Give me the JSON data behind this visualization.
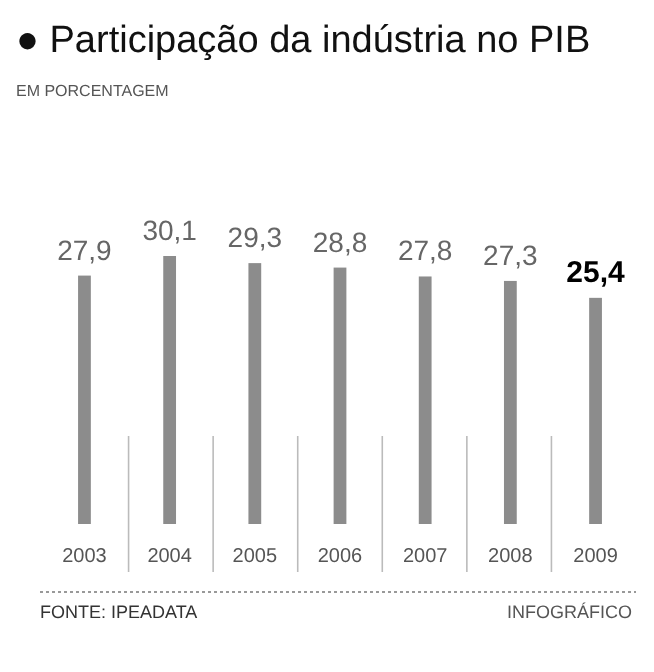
{
  "chart_data": {
    "type": "bar",
    "title": "● Participação da indústria no PIB",
    "subtitle": "EM PORCENTAGEM",
    "categories": [
      "2003",
      "2004",
      "2005",
      "2006",
      "2007",
      "2008",
      "2009"
    ],
    "values": [
      27.9,
      30.1,
      29.3,
      28.8,
      27.8,
      27.3,
      25.4
    ],
    "value_labels": [
      "27,9",
      "30,1",
      "29,3",
      "28,8",
      "27,8",
      "27,3",
      "25,4"
    ],
    "color": "#8c8c8c",
    "annotations": [
      "FONTE: IPEADATA",
      "INFOGRÁFICO"
    ]
  }
}
